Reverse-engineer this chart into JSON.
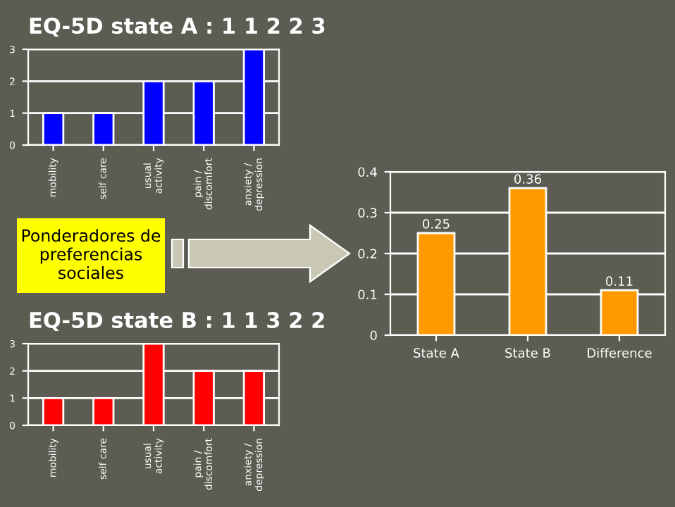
{
  "chart_data": [
    {
      "type": "bar",
      "title": "EQ-5D state A : 1 1 2 2 3",
      "categories": [
        "mobility",
        "self care",
        "usual\nactivity",
        "pain /\ndiscomfort",
        "anxiety /\ndepression"
      ],
      "values": [
        1,
        1,
        2,
        2,
        3
      ],
      "color": "#0000ff",
      "ylim": [
        0,
        3
      ],
      "yticks": [
        0,
        1,
        2,
        3
      ],
      "grid": "y"
    },
    {
      "type": "bar",
      "title": "EQ-5D state B : 1 1 3 2 2",
      "categories": [
        "mobility",
        "self care",
        "usual\nactivity",
        "pain /\ndiscomfort",
        "anxiety /\ndepression"
      ],
      "values": [
        1,
        1,
        3,
        2,
        2
      ],
      "color": "#ff0000",
      "ylim": [
        0,
        3
      ],
      "yticks": [
        0,
        1,
        2,
        3
      ],
      "grid": "y"
    },
    {
      "type": "bar",
      "categories": [
        "State A",
        "State B",
        "Difference"
      ],
      "values": [
        0.25,
        0.36,
        0.11
      ],
      "color": "#ff9900",
      "ylim": [
        0,
        0.4
      ],
      "yticks": [
        0,
        0.1,
        0.2,
        0.3,
        0.4
      ],
      "grid": "y",
      "data_labels": true
    },
    {
      "type": "other",
      "annotations": [
        "Ponderadores de\npreferencias\nsociales"
      ]
    }
  ]
}
